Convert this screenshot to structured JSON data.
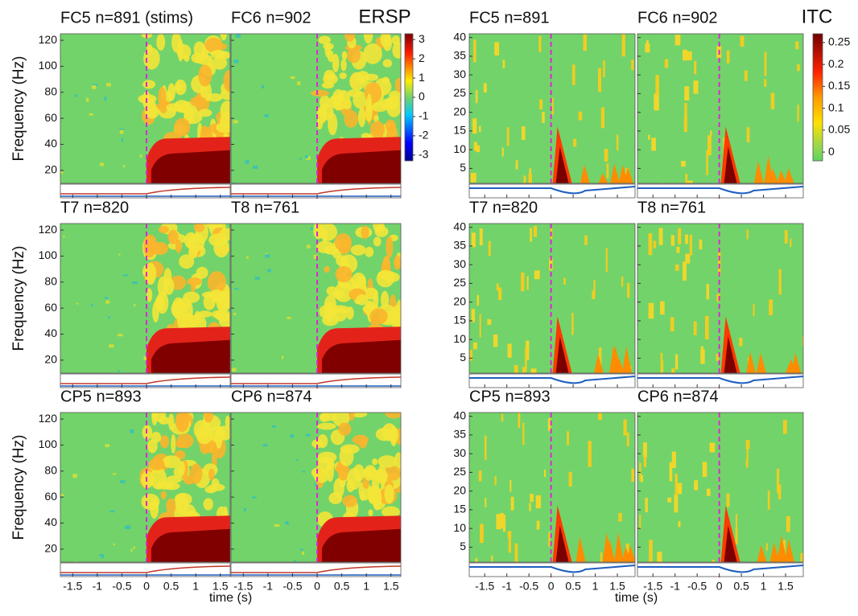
{
  "chart_data": [
    {
      "type": "heatmap",
      "panels": [
        "FC5 n=891 (stims)",
        "FC6 n=902",
        "T7 n=820",
        "T8 n=761",
        "CP5 n=893",
        "CP6 n=874"
      ],
      "ylabel": "Frequency (Hz)",
      "xlabel": "time (s)",
      "xlim": [
        -1.75,
        1.7
      ],
      "xticks": [
        -1.5,
        -1,
        -0.5,
        0,
        0.5,
        1,
        1.5
      ],
      "ylim": [
        10,
        125
      ],
      "yticks": [
        20,
        40,
        60,
        80,
        100,
        120
      ],
      "colorbar_title": "ERSP",
      "clim": [
        -3.3,
        3.3
      ],
      "cticks": [
        3,
        2,
        1,
        0,
        -1,
        -2,
        -3
      ]
    },
    {
      "type": "heatmap",
      "panels": [
        "FC5 n=891",
        "FC6 n=902",
        "T7 n=820",
        "T8 n=761",
        "CP5 n=893",
        "CP6 n=874"
      ],
      "xlabel": "time (s)",
      "xlim": [
        -1.85,
        1.9
      ],
      "xticks": [
        -1.5,
        -1,
        -0.5,
        0,
        0.5,
        1,
        1.5
      ],
      "ylim": [
        1,
        41
      ],
      "yticks": [
        5,
        10,
        15,
        20,
        25,
        30,
        35,
        40
      ],
      "colorbar_title": "ITC",
      "clim": [
        -0.02,
        0.27
      ],
      "cticks": [
        0.25,
        0.2,
        0.15,
        0.1,
        0.05,
        0
      ]
    }
  ]
}
